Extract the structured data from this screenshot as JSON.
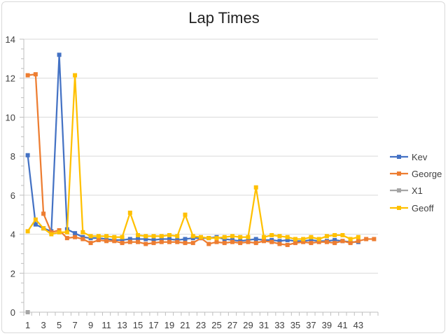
{
  "chart_data": {
    "type": "line",
    "title": "Lap Times",
    "xlabel": "",
    "ylabel": "",
    "ylim": [
      0,
      14
    ],
    "yticks": [
      0,
      2,
      4,
      6,
      8,
      10,
      12,
      14
    ],
    "xlim": [
      1,
      45
    ],
    "xticks": [
      1,
      3,
      5,
      7,
      9,
      11,
      13,
      15,
      17,
      19,
      21,
      23,
      25,
      27,
      29,
      31,
      33,
      35,
      37,
      39,
      41,
      43
    ],
    "grid": "horizontal",
    "legend_position": "right",
    "series": [
      {
        "name": "Kev",
        "color": "#4472c4",
        "marker": "square",
        "x": [
          1,
          2,
          3,
          4,
          5,
          6,
          7,
          8,
          9,
          10,
          11,
          12,
          13,
          14,
          15,
          16,
          17,
          18,
          19,
          20,
          21,
          22,
          23,
          24,
          25,
          26,
          27,
          28,
          29,
          30,
          31,
          32,
          33,
          34,
          35,
          36,
          37,
          38,
          39,
          40,
          41,
          42,
          43
        ],
        "values": [
          8.05,
          4.5,
          4.3,
          4.15,
          13.2,
          4.25,
          4.05,
          3.85,
          3.8,
          3.8,
          3.75,
          3.7,
          3.7,
          3.75,
          3.75,
          3.75,
          3.7,
          3.75,
          3.75,
          3.7,
          3.75,
          3.8,
          3.8,
          3.8,
          3.85,
          3.75,
          3.7,
          3.65,
          3.7,
          3.75,
          3.7,
          3.7,
          3.65,
          3.7,
          3.65,
          3.65,
          3.7,
          3.65,
          3.65,
          3.7,
          3.65,
          3.6,
          3.6
        ]
      },
      {
        "name": "George",
        "color": "#ed7d31",
        "marker": "square",
        "x": [
          1,
          2,
          3,
          4,
          5,
          6,
          7,
          8,
          9,
          10,
          11,
          12,
          13,
          14,
          15,
          16,
          17,
          18,
          19,
          20,
          21,
          22,
          23,
          24,
          25,
          26,
          27,
          28,
          29,
          30,
          31,
          32,
          33,
          34,
          35,
          36,
          37,
          38,
          39,
          40,
          41,
          42,
          43,
          44,
          45
        ],
        "values": [
          12.15,
          12.2,
          5.05,
          4.1,
          4.2,
          3.8,
          3.85,
          3.75,
          3.55,
          3.7,
          3.65,
          3.65,
          3.55,
          3.6,
          3.6,
          3.5,
          3.55,
          3.6,
          3.6,
          3.6,
          3.55,
          3.55,
          3.8,
          3.5,
          3.6,
          3.55,
          3.6,
          3.55,
          3.6,
          3.55,
          3.65,
          3.6,
          3.5,
          3.45,
          3.55,
          3.6,
          3.55,
          3.6,
          3.6,
          3.55,
          3.65,
          3.55,
          3.65,
          3.75,
          3.75
        ]
      },
      {
        "name": "X1",
        "color": "#a5a5a5",
        "marker": "square",
        "x": [
          1
        ],
        "values": [
          0
        ]
      },
      {
        "name": "Geoff",
        "color": "#ffc000",
        "marker": "square",
        "x": [
          1,
          2,
          3,
          4,
          5,
          6,
          7,
          8,
          9,
          10,
          11,
          12,
          13,
          14,
          15,
          16,
          17,
          18,
          19,
          20,
          21,
          22,
          23,
          24,
          25,
          26,
          27,
          28,
          29,
          30,
          31,
          32,
          33,
          34,
          35,
          36,
          37,
          38,
          39,
          40,
          41,
          42,
          43
        ],
        "values": [
          4.15,
          4.75,
          4.3,
          4.0,
          4.1,
          4.1,
          12.15,
          4.1,
          3.9,
          3.9,
          3.9,
          3.85,
          3.85,
          5.1,
          3.95,
          3.9,
          3.9,
          3.9,
          3.95,
          3.9,
          5.0,
          3.9,
          3.85,
          3.8,
          3.8,
          3.85,
          3.9,
          3.85,
          3.85,
          6.4,
          3.85,
          3.95,
          3.9,
          3.85,
          3.75,
          3.75,
          3.85,
          3.75,
          3.9,
          3.95,
          3.95,
          3.75,
          3.85
        ]
      }
    ]
  }
}
